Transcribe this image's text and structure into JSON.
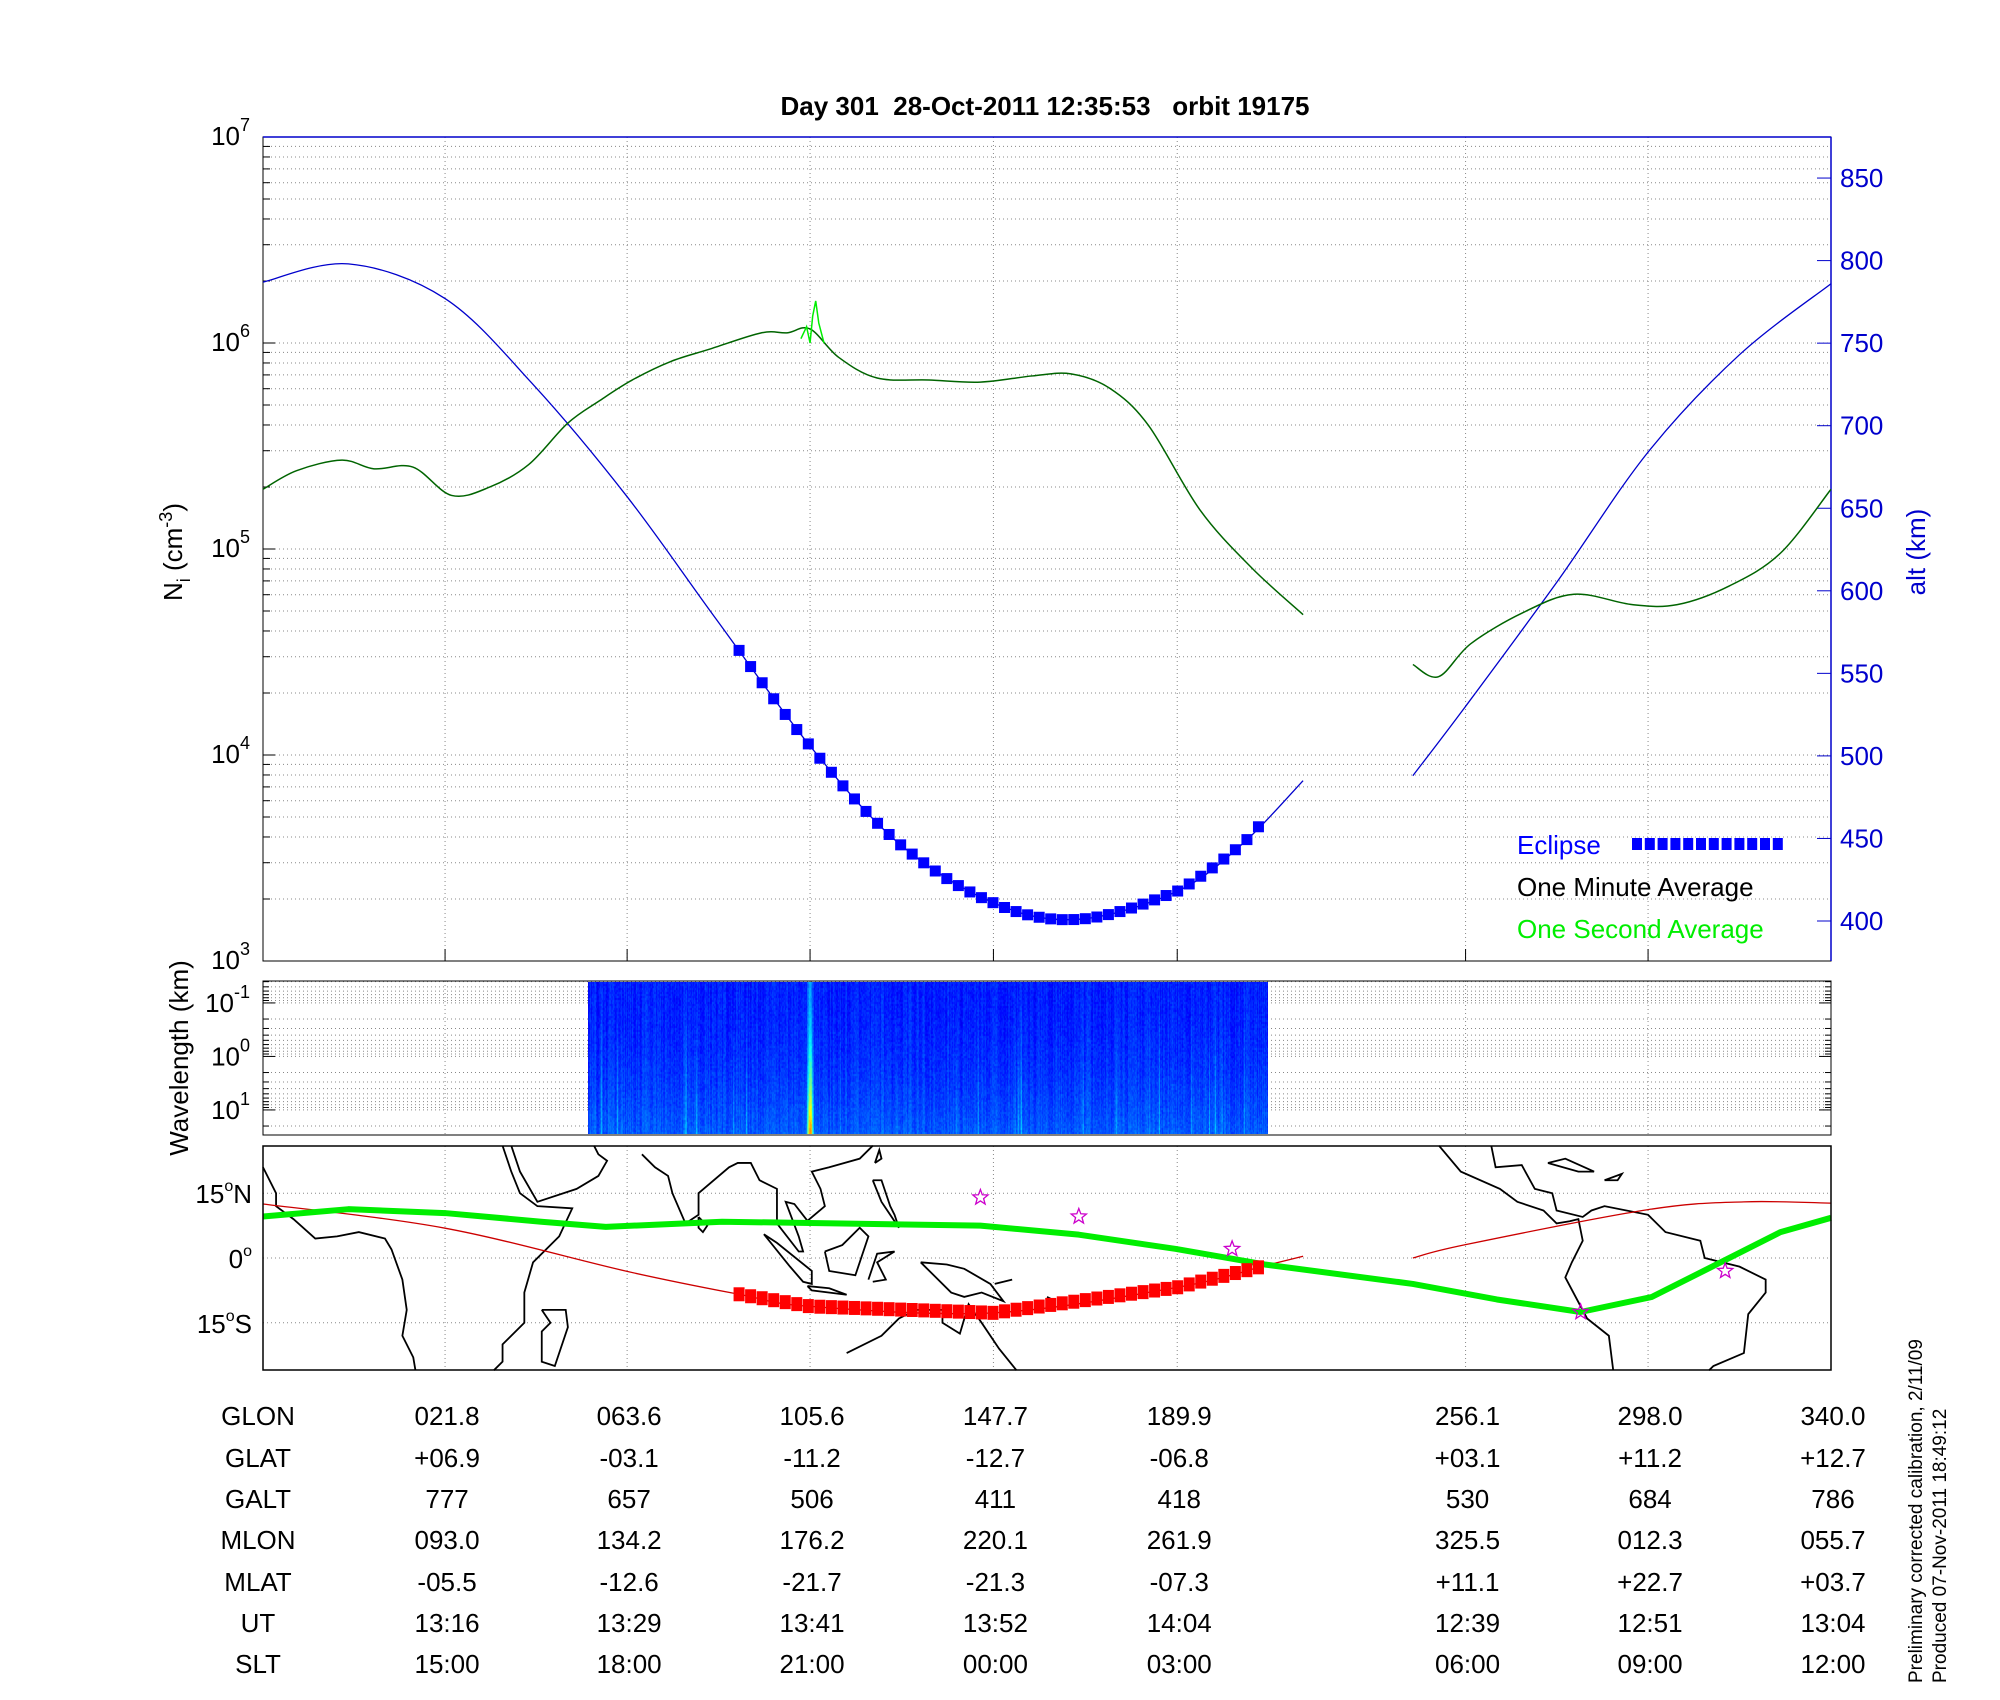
{
  "chart_data": [
    {
      "type": "line",
      "title": "Day 301  28-Oct-2011 12:35:53   orbit 19175",
      "ylabel": "N_i (cm^-3)",
      "ylabel_main": "N",
      "ylabel_sub": "i",
      "ylabel_unit": " (cm",
      "ylabel_unit_sup": "-3",
      "ylabel_close": ")",
      "yscale": "log",
      "ylim": [
        1000,
        10000000
      ],
      "yticks": [
        {
          "base": "10",
          "exp": "3",
          "value": 1000
        },
        {
          "base": "10",
          "exp": "4",
          "value": 10000
        },
        {
          "base": "10",
          "exp": "5",
          "value": 100000
        },
        {
          "base": "10",
          "exp": "6",
          "value": 1000000
        },
        {
          "base": "10",
          "exp": "7",
          "value": 10000000
        }
      ],
      "y2label": "alt (km)",
      "y2lim": [
        375,
        875
      ],
      "y2ticks": [
        "400",
        "450",
        "500",
        "550",
        "600",
        "650",
        "700",
        "750",
        "800",
        "850"
      ],
      "xlim_glon": [
        -20,
        340
      ],
      "grid": true,
      "legend_placement": "bottom-right",
      "legend": [
        {
          "label": "Eclipse",
          "color": "#0000ff"
        },
        {
          "label": "One Minute Average",
          "color": "#000000"
        },
        {
          "label": "One Second Average",
          "color": "#00ee00"
        }
      ],
      "colors": {
        "ni": "#006400",
        "ni_spike": "#00ee00",
        "altitude": "#0000cc",
        "eclipse": "#0000ff",
        "axis_right": "#0000cc"
      },
      "series": [
        {
          "key": "ni_one_minute",
          "glon": [
            -20,
            -12.3,
            -1.9,
            5.5,
            14.4,
            23.3,
            32.1,
            41.0,
            49.9,
            57.3,
            64.7,
            73.6,
            82.5,
            94.4,
            100.3,
            105.6,
            112.2,
            121.0,
            132.9,
            144.7,
            156.6,
            165.5,
            174.4,
            183.3,
            195.1,
            207.0,
            218.8,
            null,
            244.0,
            249.9,
            257.3,
            269.2,
            281.0,
            294.4,
            304.7,
            316.6,
            328.4,
            340
          ],
          "ni": [
            195000,
            240000,
            270000,
            245000,
            250000,
            182000,
            200000,
            257000,
            407000,
            525000,
            660000,
            813000,
            933000,
            1120000,
            1120000,
            1170000,
            851000,
            676000,
            661000,
            646000,
            692000,
            708000,
            603000,
            398000,
            155000,
            81000,
            48000,
            null,
            27500,
            24000,
            34700,
            49000,
            60300,
            53700,
            53700,
            66100,
            95500,
            195000
          ]
        },
        {
          "key": "ni_one_second_spike",
          "glon": [
            103.5,
            104.8,
            105.6,
            106.2,
            106.9,
            107.6,
            108.8
          ],
          "ni": [
            1050000,
            1200000,
            1000000,
            1350000,
            1600000,
            1250000,
            1000000
          ]
        },
        {
          "key": "altitude_km",
          "glon": [
            -20,
            -0.4,
            21.8,
            42,
            63.6,
            84,
            105.6,
            126,
            147.7,
            167,
            189.9,
            205,
            218.8,
            null,
            244,
            256.1,
            277,
            298,
            319,
            340
          ],
          "alt": [
            787,
            798,
            777,
            725,
            657,
            583,
            506,
            447,
            411,
            401,
            418,
            447,
            485,
            null,
            488,
            530,
            605,
            684,
            743,
            786
          ]
        }
      ],
      "eclipse_glon_range": [
        89.3,
        210.8
      ],
      "data_gap_glon": [
        218.8,
        244.0
      ]
    },
    {
      "type": "heatmap",
      "ylabel": "Wavelength (km)",
      "yscale": "log",
      "yaxis_reversed": true,
      "yticks": [
        {
          "base": "10",
          "exp": "-1",
          "value": 0.1
        },
        {
          "base": "10",
          "exp": "0",
          "value": 1
        },
        {
          "base": "10",
          "exp": "1",
          "value": 10
        }
      ],
      "ylim": [
        0.039,
        30
      ],
      "data_glon_range": [
        54.7,
        210.8
      ],
      "colormap": "jet",
      "peak_glon": 105.6
    },
    {
      "type": "map",
      "ylim_lat": [
        -26,
        26
      ],
      "lat_ticks": [
        {
          "deg": "15",
          "suffix": "N",
          "value": 15
        },
        {
          "deg": "0",
          "suffix": "",
          "value": 0
        },
        {
          "deg": "15",
          "suffix": "S",
          "value": -15
        }
      ],
      "colors": {
        "track": "#cc0000",
        "eclipse_track": "#ff0000",
        "dip_equator": "#00ee00",
        "stars": "#cc00cc",
        "coast": "#000000"
      },
      "satellite_track": {
        "glon": [
          -20,
          21.8,
          63.6,
          89.3,
          105.6,
          147.7,
          189.9,
          210.8,
          218.8,
          null,
          244,
          256.1,
          298,
          320,
          340
        ],
        "glat": [
          12.5,
          6.9,
          -3.1,
          -8.4,
          -11.2,
          -12.7,
          -6.8,
          -1.6,
          0.4,
          null,
          0,
          3.1,
          11.2,
          13.0,
          12.7
        ]
      },
      "magnetic_equator": {
        "glon": [
          -20,
          -0.4,
          21.8,
          43.9,
          58.7,
          85.4,
          105.6,
          144.7,
          167.3,
          189.6,
          210,
          244,
          263.3,
          282.5,
          298.9,
          313.7,
          328.4,
          340
        ],
        "glat": [
          9.6,
          11.3,
          10.4,
          8.4,
          7.2,
          8.4,
          8.1,
          7.5,
          5.4,
          2.1,
          -1.5,
          -6,
          -9.6,
          -12.5,
          -9,
          -1.5,
          6,
          9.3
        ]
      },
      "stars": [
        {
          "glon": 144.7,
          "glat": 14
        },
        {
          "glon": 167.3,
          "glat": 9.6
        },
        {
          "glon": 202.5,
          "glat": 2.1
        },
        {
          "glon": 282.5,
          "glat": -12.5
        },
        {
          "glon": 315.7,
          "glat": -3
        }
      ]
    }
  ],
  "table": {
    "columns_glon": [
      21.8,
      63.6,
      105.6,
      147.7,
      189.9,
      256.1,
      298.0,
      340.0
    ],
    "rows": [
      {
        "label": "GLON",
        "values": [
          "021.8",
          "063.6",
          "105.6",
          "147.7",
          "189.9",
          "256.1",
          "298.0",
          "340.0"
        ]
      },
      {
        "label": "GLAT",
        "values": [
          "+06.9",
          "-03.1",
          "-11.2",
          "-12.7",
          "-06.8",
          "+03.1",
          "+11.2",
          "+12.7"
        ]
      },
      {
        "label": "GALT",
        "values": [
          "777",
          "657",
          "506",
          "411",
          "418",
          "530",
          "684",
          "786"
        ]
      },
      {
        "label": "MLON",
        "values": [
          "093.0",
          "134.2",
          "176.2",
          "220.1",
          "261.9",
          "325.5",
          "012.3",
          "055.7"
        ]
      },
      {
        "label": "MLAT",
        "values": [
          "-05.5",
          "-12.6",
          "-21.7",
          "-21.3",
          "-07.3",
          "+11.1",
          "+22.7",
          "+03.7"
        ]
      },
      {
        "label": "UT",
        "values": [
          "13:16",
          "13:29",
          "13:41",
          "13:52",
          "14:04",
          "12:39",
          "12:51",
          "13:04"
        ]
      },
      {
        "label": "SLT",
        "values": [
          "15:00",
          "18:00",
          "21:00",
          "00:00",
          "03:00",
          "06:00",
          "09:00",
          "12:00"
        ]
      }
    ]
  },
  "footer": {
    "line1": "Preliminary corrected calibration, 2/11/09",
    "line2": "Produced 07-Nov-2011 18:49:12"
  }
}
